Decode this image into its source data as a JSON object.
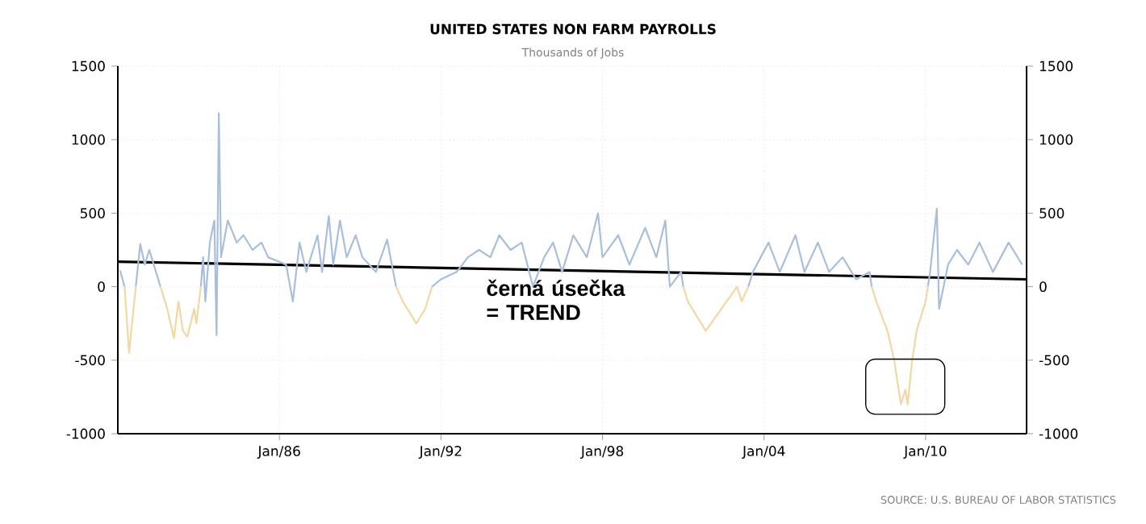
{
  "chart_data": {
    "type": "line",
    "title": "UNITED STATES NON FARM PAYROLLS",
    "subtitle": "Thousands of Jobs",
    "annotations": [
      "černá úsečka = TREND",
      "SOURCE: U.S. BUREAU OF LABOR STATISTICS"
    ],
    "xlim": [
      "1980-01",
      "2013-10"
    ],
    "xticks": [
      {
        "value": "1986-01",
        "label": "Jan/86"
      },
      {
        "value": "1992-01",
        "label": "Jan/92"
      },
      {
        "value": "1998-01",
        "label": "Jan/98"
      },
      {
        "value": "2004-01",
        "label": "Jan/04"
      },
      {
        "value": "2010-01",
        "label": "Jan/10"
      }
    ],
    "ylim": [
      -1000,
      1500
    ],
    "yticks": [
      -1000,
      -500,
      0,
      500,
      1000,
      1500
    ],
    "y2lim": [
      -1000,
      1500
    ],
    "y2ticks": [
      -1000,
      -500,
      0,
      500,
      1000,
      1500
    ],
    "grid": true,
    "marker": "none",
    "line_style": "solid",
    "series": [
      {
        "color": "#000000",
        "x": [
          "1980-01",
          "2013-10"
        ],
        "values": [
          170,
          50
        ]
      },
      {
        "color": "#a9bedb",
        "x": [
          "1980-02",
          "1980-04",
          "1980-06",
          "1980-09",
          "1980-11",
          "1981-01",
          "1981-03",
          "1981-06",
          "1981-08",
          "1982-06",
          "1983-02",
          "1983-03",
          "1983-04",
          "1983-06",
          "1983-08",
          "1983-09",
          "1983-10",
          "1983-11",
          "1984-02",
          "1984-06",
          "1984-09",
          "1985-01",
          "1985-05",
          "1985-08",
          "1986-04",
          "1986-07",
          "1986-10",
          "1987-01",
          "1987-06",
          "1987-08",
          "1987-11",
          "1988-01",
          "1988-04",
          "1988-07",
          "1988-11",
          "1989-02",
          "1989-08",
          "1990-01",
          "1990-05",
          "1991-02",
          "1991-09",
          "1992-01",
          "1992-08",
          "1993-01",
          "1993-06",
          "1993-11",
          "1994-03",
          "1994-08",
          "1995-01",
          "1995-06",
          "1995-11",
          "1996-03",
          "1996-07",
          "1996-12",
          "1997-06",
          "1997-11",
          "1998-01",
          "1998-08",
          "1999-01",
          "1999-08",
          "2000-01",
          "2000-05",
          "2000-07",
          "2000-12",
          "2001-01",
          "2002-06",
          "2003-06",
          "2003-08",
          "2004-03",
          "2004-08",
          "2005-03",
          "2005-07",
          "2006-01",
          "2006-06",
          "2006-12",
          "2007-06",
          "2007-12",
          "2008-01",
          "2009-02",
          "2010-02",
          "2010-03",
          "2010-06",
          "2010-07",
          "2010-11",
          "2011-03",
          "2011-08",
          "2012-01",
          "2012-07",
          "2013-02",
          "2013-08"
        ],
        "values": [
          110,
          0,
          null,
          0,
          290,
          150,
          250,
          100,
          0,
          null,
          0,
          200,
          -100,
          300,
          450,
          -330,
          1180,
          200,
          450,
          300,
          350,
          250,
          300,
          200,
          150,
          -100,
          300,
          100,
          350,
          100,
          480,
          150,
          450,
          200,
          350,
          200,
          100,
          320,
          0,
          null,
          0,
          50,
          100,
          200,
          250,
          200,
          350,
          250,
          300,
          0,
          200,
          300,
          100,
          350,
          200,
          500,
          200,
          350,
          150,
          400,
          200,
          450,
          0,
          100,
          0,
          null,
          0,
          100,
          300,
          100,
          350,
          100,
          300,
          100,
          200,
          50,
          100,
          0,
          null,
          0,
          100,
          530,
          -150,
          150,
          250,
          150,
          300,
          100,
          300,
          150
        ]
      },
      {
        "color": "#f2d7a4",
        "x": [
          "1980-04",
          "1980-06",
          "1980-09",
          "1981-01",
          "1981-08",
          "1981-11",
          "1982-02",
          "1982-04",
          "1982-06",
          "1982-08",
          "1982-11",
          "1982-12",
          "1983-02",
          "1985-01",
          "1990-05",
          "1990-08",
          "1991-02",
          "1991-06",
          "1991-09",
          "1995-01",
          "2001-01",
          "2001-03",
          "2001-11",
          "2002-06",
          "2003-01",
          "2003-03",
          "2003-06",
          "2005-01",
          "2008-01",
          "2008-03",
          "2008-08",
          "2008-11",
          "2009-02",
          "2009-04",
          "2009-05",
          "2009-07",
          "2009-09",
          "2010-01",
          "2010-02"
        ],
        "values": [
          0,
          -450,
          0,
          null,
          0,
          -150,
          -350,
          -100,
          -300,
          -340,
          -150,
          -250,
          0,
          null,
          0,
          -100,
          -250,
          -150,
          0,
          null,
          0,
          -100,
          -300,
          -150,
          0,
          -100,
          0,
          null,
          0,
          -100,
          -300,
          -500,
          -800,
          -700,
          -800,
          -500,
          -300,
          -100,
          0
        ]
      }
    ]
  }
}
